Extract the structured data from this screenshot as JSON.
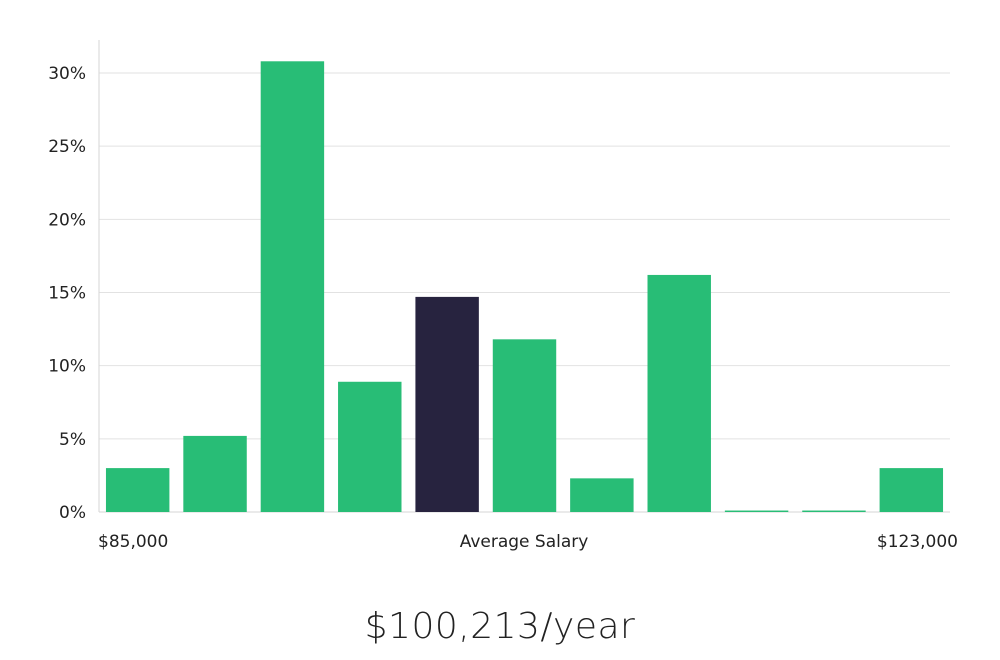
{
  "chart_data": {
    "type": "bar",
    "y_ticks": [
      "0%",
      "5%",
      "10%",
      "15%",
      "20%",
      "25%",
      "30%"
    ],
    "ylim": [
      0,
      30
    ],
    "grid": true,
    "values": [
      3.0,
      5.2,
      30.8,
      8.9,
      14.7,
      11.8,
      2.3,
      16.2,
      0.1,
      0.1,
      3.0
    ],
    "highlight_index": 4,
    "colors": {
      "bar": "#28bd76",
      "highlight": "#27233f",
      "grid": "#e2e2e2",
      "axis": "#d6d6d6"
    },
    "x_labels": {
      "min": "$85,000",
      "center": "Average Salary",
      "max": "$123,000"
    }
  },
  "summary": {
    "average_salary": "$100,213/year"
  }
}
